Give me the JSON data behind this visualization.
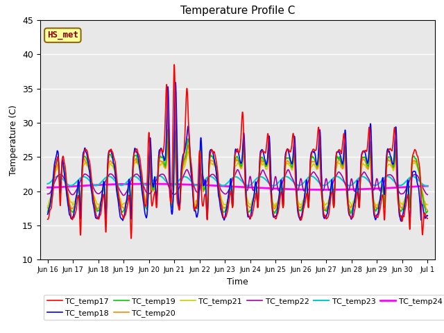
{
  "title": "Temperature Profile C",
  "xlabel": "Time",
  "ylabel": "Temperature (C)",
  "ylim": [
    10,
    45
  ],
  "annotation": "HS_met",
  "annotation_color": "#8B0000",
  "annotation_bg": "#FFFF99",
  "annotation_border": "#8B6914",
  "series_colors": {
    "TC_temp17": "#FF0000",
    "TC_temp18": "#0000FF",
    "TC_temp19": "#00CC00",
    "TC_temp20": "#FF8800",
    "TC_temp21": "#CCCC00",
    "TC_temp22": "#AA00AA",
    "TC_temp23": "#00CCCC",
    "TC_temp24": "#FF00FF"
  },
  "tick_labels": [
    "Jun 16",
    "Jun 17",
    "Jun 18",
    "Jun 19",
    "Jun 20",
    "Jun 21",
    "Jun 22",
    "Jun 23",
    "Jun 24",
    "Jun 25",
    "Jun 26",
    "Jun 27",
    "Jun 28",
    "Jun 29",
    "Jun 30",
    "Jul 1"
  ],
  "tick_positions": [
    0,
    1,
    2,
    3,
    4,
    5,
    6,
    7,
    8,
    9,
    10,
    11,
    12,
    13,
    14,
    15
  ],
  "legend_order": [
    "TC_temp17",
    "TC_temp18",
    "TC_temp19",
    "TC_temp20",
    "TC_temp21",
    "TC_temp22",
    "TC_temp23",
    "TC_temp24"
  ]
}
